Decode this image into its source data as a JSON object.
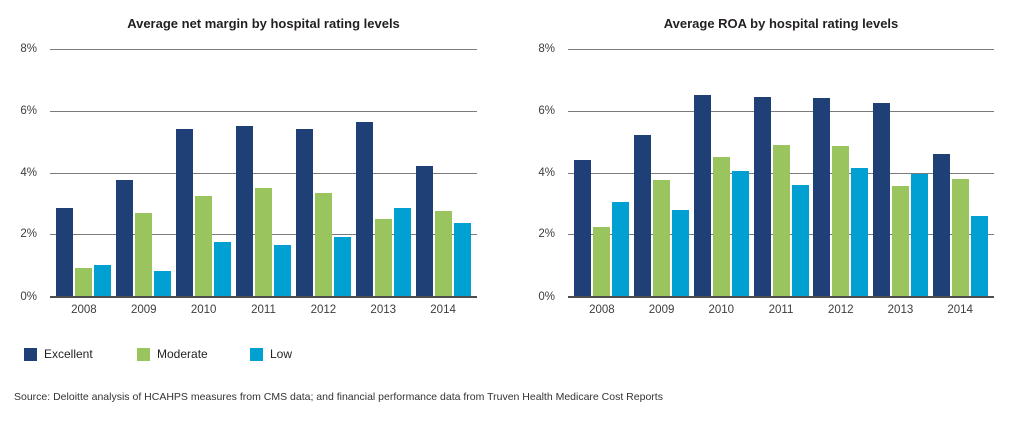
{
  "colors": {
    "excellent": "#1f4077",
    "moderate": "#9ac45e",
    "low": "#00a0d2",
    "gridline": "#7b7b7b",
    "axis_baseline": "#4d4d4d",
    "background": "#ffffff"
  },
  "legend": {
    "items": [
      {
        "label": "Excellent",
        "color": "#1f4077"
      },
      {
        "label": "Moderate",
        "color": "#9ac45e"
      },
      {
        "label": "Low",
        "color": "#00a0d2"
      }
    ]
  },
  "source_note": "Source: Deloitte analysis of HCAHPS measures from CMS data; and financial performance data from Truven Health Medicare Cost Reports",
  "chart_data": [
    {
      "type": "bar",
      "title": "Average net margin by hospital rating levels",
      "categories": [
        "2008",
        "2009",
        "2010",
        "2011",
        "2012",
        "2013",
        "2014"
      ],
      "series": [
        {
          "name": "Excellent",
          "color": "#1f4077",
          "values": [
            2.85,
            3.75,
            5.4,
            5.5,
            5.4,
            5.65,
            4.2
          ]
        },
        {
          "name": "Moderate",
          "color": "#9ac45e",
          "values": [
            0.9,
            2.7,
            3.25,
            3.5,
            3.35,
            2.5,
            2.75
          ]
        },
        {
          "name": "Low",
          "color": "#00a0d2",
          "values": [
            1.0,
            0.8,
            1.75,
            1.65,
            1.9,
            2.85,
            2.35
          ]
        }
      ],
      "xlabel": "",
      "ylabel": "",
      "ylim": [
        0,
        8
      ],
      "yticks": [
        "8%",
        "6%",
        "4%",
        "2%",
        "0%"
      ],
      "grid": true,
      "legend_position": "bottom-left"
    },
    {
      "type": "bar",
      "title": "Average ROA by hospital rating levels",
      "categories": [
        "2008",
        "2009",
        "2010",
        "2011",
        "2012",
        "2013",
        "2014"
      ],
      "series": [
        {
          "name": "Excellent",
          "color": "#1f4077",
          "values": [
            4.4,
            5.2,
            6.5,
            6.45,
            6.4,
            6.25,
            4.6
          ]
        },
        {
          "name": "Moderate",
          "color": "#9ac45e",
          "values": [
            2.25,
            3.75,
            4.5,
            4.9,
            4.85,
            3.55,
            3.8
          ]
        },
        {
          "name": "Low",
          "color": "#00a0d2",
          "values": [
            3.05,
            2.8,
            4.05,
            3.6,
            4.15,
            3.95,
            2.6
          ]
        }
      ],
      "xlabel": "",
      "ylabel": "",
      "ylim": [
        0,
        8
      ],
      "yticks": [
        "8%",
        "6%",
        "4%",
        "2%",
        "0%"
      ],
      "grid": true,
      "legend_position": "bottom-left"
    }
  ]
}
